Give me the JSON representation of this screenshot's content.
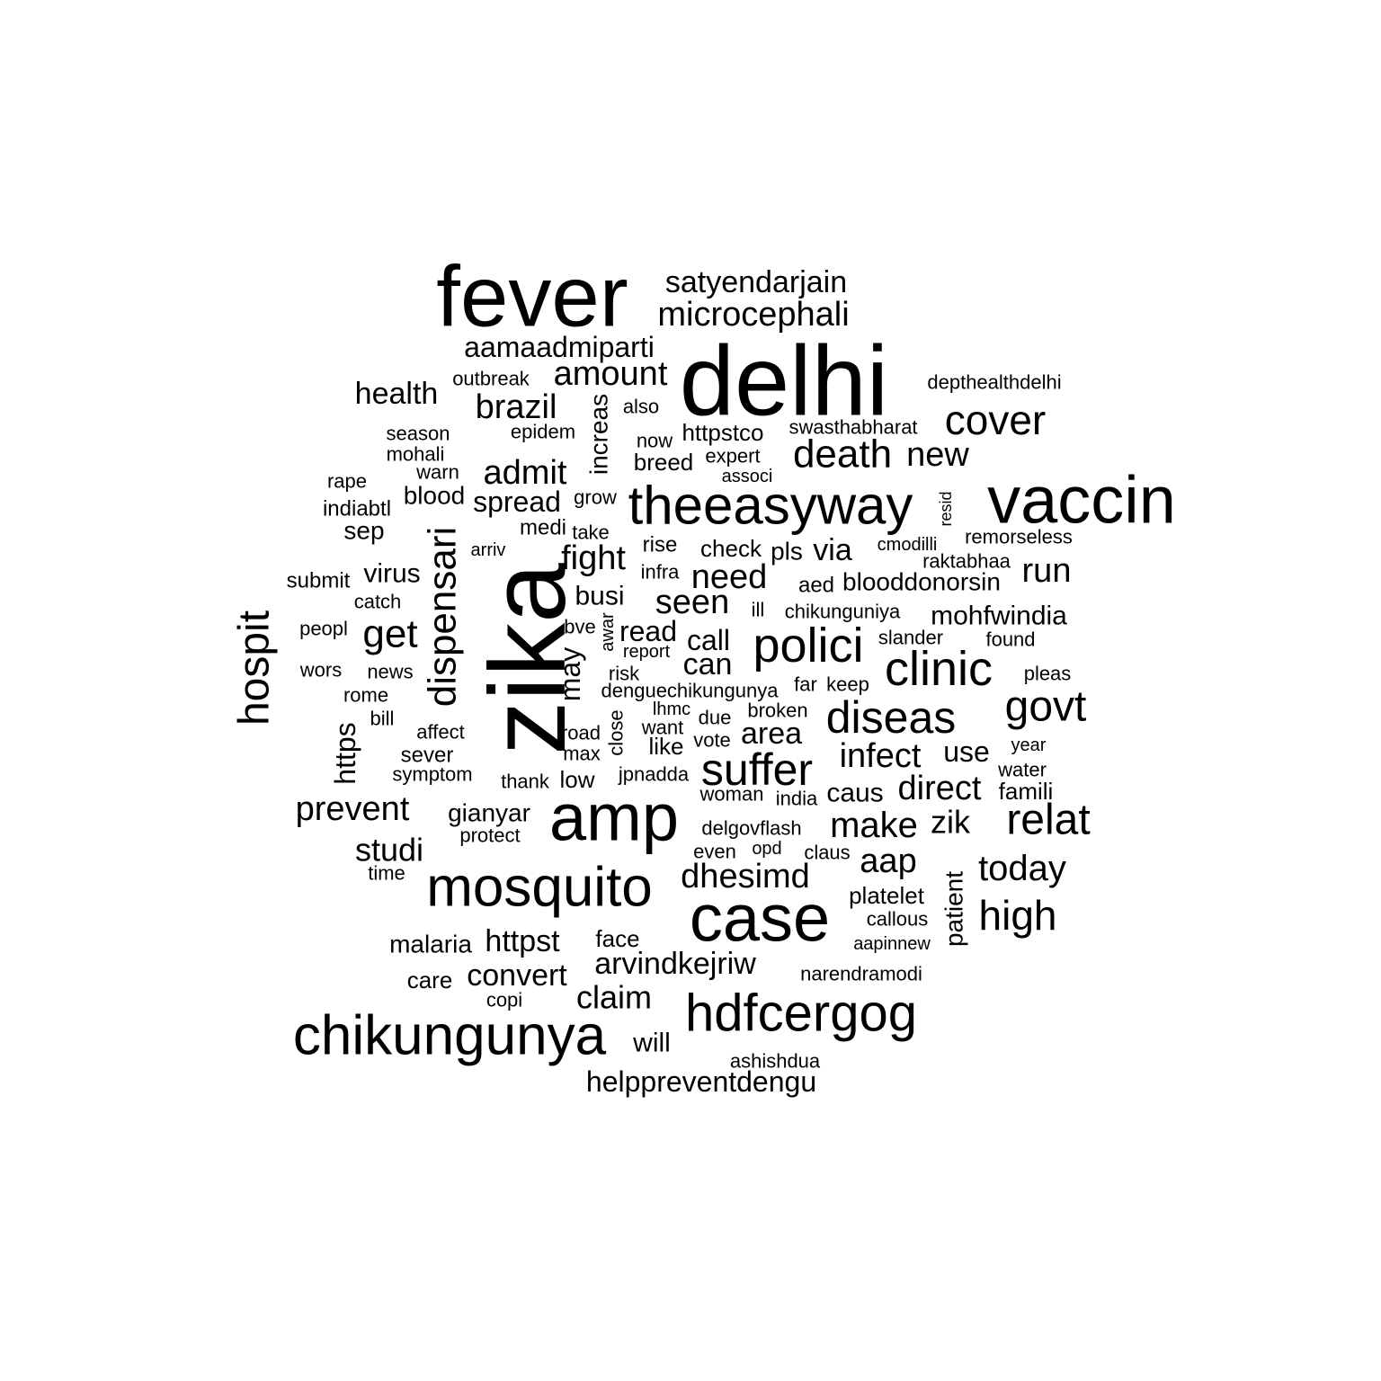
{
  "colors": {
    "background": "#ffffff",
    "text": "#000000"
  },
  "words": [
    "fever",
    "delhi",
    "zika",
    "vaccin",
    "amp",
    "case",
    "mosquito",
    "chikungunya",
    "theeasyway",
    "hdfcergog",
    "polici",
    "clinic",
    "diseas",
    "suffer",
    "hospit",
    "dispensari",
    "relat",
    "govt",
    "cover",
    "death",
    "microcephali",
    "satyendarjain",
    "aamaadmiparti",
    "amount",
    "brazil",
    "health",
    "get",
    "prevent",
    "admit",
    "spread",
    "fight",
    "need",
    "seen",
    "direct",
    "make",
    "infect",
    "run",
    "new",
    "today",
    "high",
    "dhesimd",
    "arvindkejriw",
    "convert",
    "httpst",
    "claim",
    "studi",
    "mohfwindia",
    "blooddonorsin",
    "area",
    "aap",
    "zik",
    "read",
    "call",
    "can",
    "busi",
    "via",
    "use",
    "caus",
    "platelet",
    "malaria",
    "helppreventdengu",
    "gianyar",
    "blood",
    "virus",
    "sep",
    "increas",
    "may",
    "https",
    "patient",
    "outbreak",
    "depthealthdelhi",
    "also",
    "epidem",
    "season",
    "mohali",
    "warn",
    "rape",
    "indiabtl",
    "httpstco",
    "swasthabharat",
    "breed",
    "expert",
    "associ",
    "now",
    "grow",
    "medi",
    "take",
    "arriv",
    "check",
    "pls",
    "cmodilli",
    "remorseless",
    "resid",
    "rise",
    "infra",
    "raktabhaa",
    "aed",
    "submit",
    "catch",
    "peopl",
    "bve",
    "awar",
    "report",
    "ill",
    "chikunguniya",
    "slander",
    "found",
    "wors",
    "news",
    "risk",
    "denguechikungunya",
    "far",
    "keep",
    "pleas",
    "rome",
    "bill",
    "lhmc",
    "due",
    "broken",
    "affect",
    "road",
    "want",
    "vote",
    "year",
    "sever",
    "max",
    "close",
    "like",
    "symptom",
    "thank",
    "low",
    "jpnadda",
    "water",
    "woman",
    "india",
    "famili",
    "delgovflash",
    "protect",
    "even",
    "opd",
    "claus",
    "time",
    "callous",
    "aapinnew",
    "face",
    "care",
    "narendramodi",
    "copi",
    "will",
    "ashishdua"
  ]
}
